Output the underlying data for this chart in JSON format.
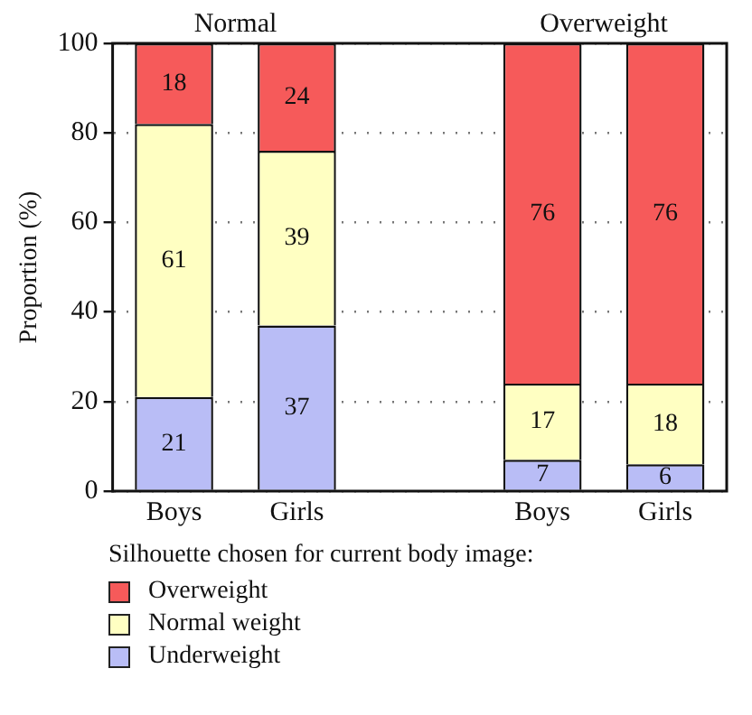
{
  "chart_data": {
    "type": "bar",
    "stacked": true,
    "ylabel": "Proportion (%)",
    "legend_title": "Silhouette chosen for current body image:",
    "categories": [
      "Boys",
      "Girls",
      null,
      "Boys",
      "Girls"
    ],
    "series": [
      {
        "name": "Underweight",
        "color": "#b9bdf6",
        "values": [
          21,
          37,
          null,
          7,
          6
        ]
      },
      {
        "name": "Normal weight",
        "color": "#ffffc2",
        "values": [
          61,
          39,
          null,
          17,
          18
        ]
      },
      {
        "name": "Overweight",
        "color": "#f65a5a",
        "values": [
          18,
          24,
          null,
          76,
          76
        ]
      }
    ],
    "ylim": [
      0,
      100
    ],
    "yticks": [
      0,
      20,
      40,
      60,
      80,
      100
    ],
    "grid": "y",
    "line_style": "dotted",
    "data_labels": true,
    "legend": "bottom left",
    "annotations": [
      "Normal",
      "Overweight"
    ]
  }
}
